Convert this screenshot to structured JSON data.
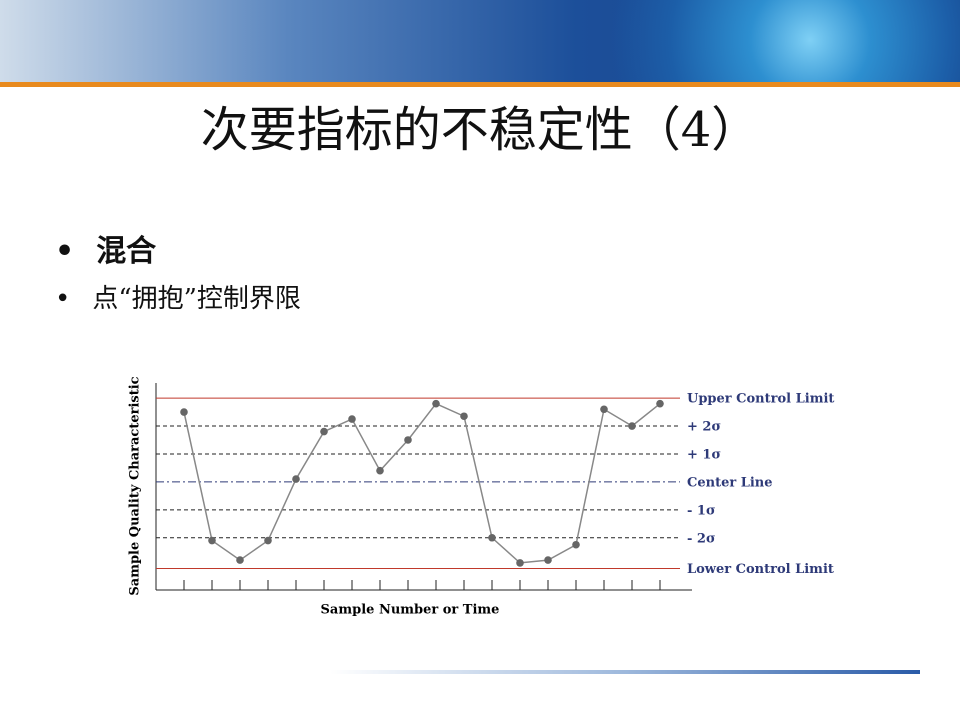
{
  "header": {
    "title": "次要指标的不稳定性（4）"
  },
  "bullets": [
    "混合",
    "点“拥抱”控制界限"
  ],
  "chart_data": {
    "type": "line",
    "y_label": "Sample Quality Characteristic",
    "x_label": "Sample Number or Time",
    "categories": [
      null,
      null,
      null,
      null,
      null,
      null,
      null,
      null,
      null,
      null,
      null,
      null,
      null,
      null,
      null,
      null,
      null,
      null
    ],
    "values": [
      2.5,
      -2.1,
      -2.8,
      -2.1,
      0.1,
      1.8,
      2.25,
      0.4,
      1.5,
      2.8,
      2.35,
      -2.0,
      -2.9,
      -2.8,
      -2.25,
      2.6,
      2.0,
      2.8
    ],
    "color": "#666666",
    "ylim": [
      -3.87,
      3.54
    ],
    "yticks": [
      {
        "value": 3,
        "label": "Upper Control Limit"
      },
      {
        "value": 2,
        "label": "+ 2σ"
      },
      {
        "value": 1,
        "label": "+ 1σ"
      },
      {
        "value": 0,
        "label": "Center Line"
      },
      {
        "value": -1,
        "label": "- 1σ"
      },
      {
        "value": -2,
        "label": "- 2σ"
      },
      {
        "value": -3.1,
        "label": "Lower Control Limit"
      }
    ],
    "limit_color": "#c0392b",
    "label_color": "#2e3a78"
  }
}
